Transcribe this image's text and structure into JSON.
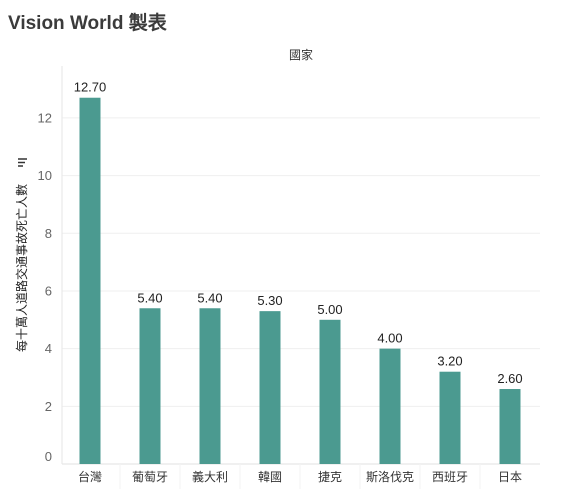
{
  "icons": {
    "axis_sort": "sort-icon"
  },
  "colors": {
    "bar": "#4b9a90",
    "gridline": "#efefef",
    "zero_line": "#e2e2e2"
  },
  "chart_data": {
    "type": "bar",
    "title": "Vision World 製表",
    "xlabel": "國家",
    "ylabel": "每十萬人道路交通事故死亡人數",
    "categories": [
      "台灣",
      "葡萄牙",
      "義大利",
      "韓國",
      "捷克",
      "斯洛伐克",
      "西班牙",
      "日本"
    ],
    "values": [
      12.7,
      5.4,
      5.4,
      5.3,
      5.0,
      4.0,
      3.2,
      2.6
    ],
    "data_labels": [
      "12.70",
      "5.40",
      "5.40",
      "5.30",
      "5.00",
      "4.00",
      "3.20",
      "2.60"
    ],
    "yticks": [
      0,
      2,
      4,
      6,
      8,
      10,
      12
    ],
    "ylim": [
      0,
      13.8
    ],
    "grid": true,
    "legend": "none"
  }
}
